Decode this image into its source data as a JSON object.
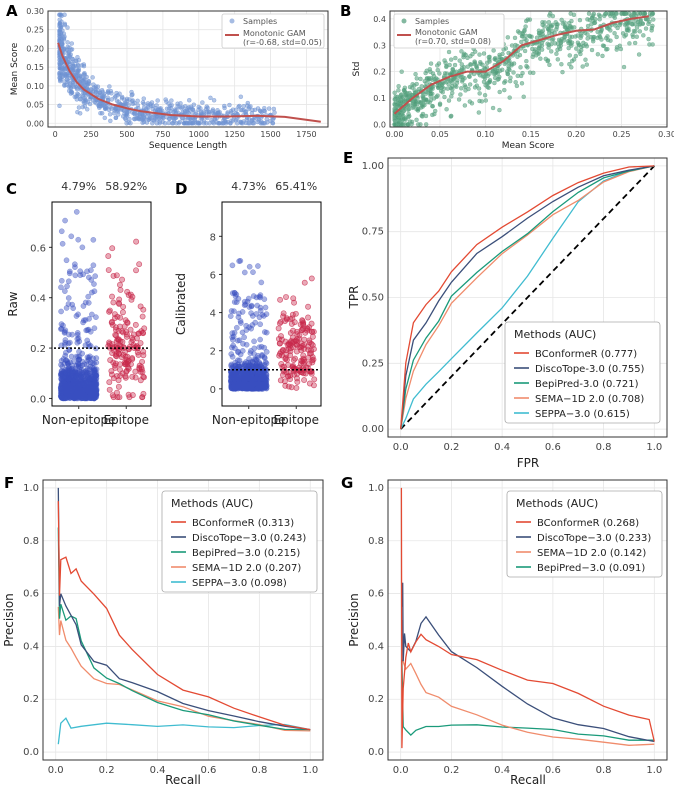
{
  "panel_labels": {
    "A": "A",
    "B": "B",
    "C": "C",
    "D": "D",
    "E": "E",
    "F": "F",
    "G": "G"
  },
  "colors": {
    "blue_pts": "#6a8fd0",
    "green_pts": "#4f9a78",
    "gam": "#c0504d",
    "nonepi": "#3a4fc0",
    "epi": "#c8284a",
    "bconformer": "#e34a33",
    "discotope": "#3b4f7a",
    "bepipred": "#1a9a7a",
    "sema": "#f08c6c",
    "seppa": "#40bcd0"
  },
  "chart_data": [
    {
      "panel": "A",
      "type": "scatter",
      "xlabel": "Sequence Length",
      "ylabel": "Mean Score",
      "xlim": [
        -50,
        1900
      ],
      "ylim": [
        -0.01,
        0.3
      ],
      "xticks": [
        "0",
        "250",
        "500",
        "750",
        "1000",
        "1250",
        "1500",
        "1750"
      ],
      "yticks": [
        "0.00",
        "0.05",
        "0.10",
        "0.15",
        "0.20",
        "0.25",
        "0.30"
      ],
      "legend": {
        "points": "Samples",
        "line": "Monotonic GAM",
        "line_sub": "(r=-0.68, std=0.05)"
      },
      "gam_x": [
        20,
        50,
        100,
        150,
        200,
        300,
        400,
        500,
        600,
        800,
        1000,
        1200,
        1400,
        1600,
        1850
      ],
      "gam_y": [
        0.215,
        0.18,
        0.14,
        0.11,
        0.09,
        0.065,
        0.05,
        0.04,
        0.032,
        0.022,
        0.018,
        0.018,
        0.02,
        0.017,
        0.004
      ]
    },
    {
      "panel": "B",
      "type": "scatter",
      "xlabel": "Mean Score",
      "ylabel": "Std",
      "xlim": [
        -0.005,
        0.3
      ],
      "ylim": [
        -0.01,
        0.43
      ],
      "xticks": [
        "0.00",
        "0.05",
        "0.10",
        "0.15",
        "0.20",
        "0.25",
        "0.30"
      ],
      "yticks": [
        "0.0",
        "0.1",
        "0.2",
        "0.3",
        "0.4"
      ],
      "legend": {
        "points": "Samples",
        "line": "Monotonic GAM",
        "line_sub": "(r=0.70, std=0.08)"
      },
      "gam_x": [
        0,
        0.02,
        0.04,
        0.06,
        0.08,
        0.1,
        0.12,
        0.14,
        0.16,
        0.18,
        0.2,
        0.22,
        0.24,
        0.26,
        0.28
      ],
      "gam_y": [
        0.04,
        0.1,
        0.15,
        0.18,
        0.2,
        0.2,
        0.24,
        0.3,
        0.32,
        0.34,
        0.355,
        0.36,
        0.385,
        0.4,
        0.41
      ]
    },
    {
      "panel": "C",
      "type": "strip",
      "ylabel": "Raw",
      "categories": [
        "Non-epitope",
        "Epitope"
      ],
      "percentages": [
        "4.79%",
        "58.92%"
      ],
      "threshold": 0.2,
      "ylim": [
        -0.03,
        0.78
      ],
      "yticks": [
        "0.0",
        "0.2",
        "0.4",
        "0.6"
      ]
    },
    {
      "panel": "D",
      "type": "strip",
      "ylabel": "Calibrated",
      "categories": [
        "Non-epitope",
        "Epitope"
      ],
      "percentages": [
        "4.73%",
        "65.41%"
      ],
      "threshold": 1.0,
      "ylim": [
        -0.9,
        9.8
      ],
      "yticks": [
        "0",
        "2",
        "4",
        "6",
        "8"
      ]
    },
    {
      "panel": "E",
      "type": "line",
      "xlabel": "FPR",
      "ylabel": "TPR",
      "xlim": [
        -0.05,
        1.05
      ],
      "ylim": [
        -0.03,
        1.03
      ],
      "xticks": [
        "0.0",
        "0.2",
        "0.4",
        "0.6",
        "0.8",
        "1.0"
      ],
      "yticks": [
        "0.00",
        "0.25",
        "0.50",
        "0.75",
        "1.00"
      ],
      "legend_title": "Methods (AUC)",
      "series": [
        {
          "name": "BConformeR (0.777)",
          "key": "bconformer",
          "x": [
            0,
            0.02,
            0.05,
            0.1,
            0.15,
            0.2,
            0.3,
            0.4,
            0.5,
            0.6,
            0.7,
            0.8,
            0.9,
            1.0
          ],
          "y": [
            0,
            0.25,
            0.4,
            0.47,
            0.53,
            0.6,
            0.7,
            0.77,
            0.83,
            0.88,
            0.93,
            0.97,
            0.99,
            1.0
          ]
        },
        {
          "name": "DiscoTope-3.0 (0.755)",
          "key": "discotope",
          "x": [
            0,
            0.02,
            0.05,
            0.1,
            0.15,
            0.2,
            0.3,
            0.4,
            0.5,
            0.6,
            0.7,
            0.8,
            0.9,
            1.0
          ],
          "y": [
            0,
            0.2,
            0.33,
            0.41,
            0.49,
            0.56,
            0.66,
            0.74,
            0.81,
            0.87,
            0.92,
            0.96,
            0.99,
            1.0
          ]
        },
        {
          "name": "BepiPred-3.0 (0.721)",
          "key": "bepipred",
          "x": [
            0,
            0.02,
            0.05,
            0.1,
            0.15,
            0.2,
            0.3,
            0.4,
            0.5,
            0.6,
            0.7,
            0.8,
            0.9,
            1.0
          ],
          "y": [
            0,
            0.15,
            0.26,
            0.34,
            0.42,
            0.5,
            0.59,
            0.67,
            0.75,
            0.83,
            0.9,
            0.96,
            0.99,
            1.0
          ]
        },
        {
          "name": "SEMA−1D 2.0 (0.708)",
          "key": "sema",
          "x": [
            0,
            0.02,
            0.05,
            0.1,
            0.15,
            0.2,
            0.3,
            0.4,
            0.5,
            0.6,
            0.7,
            0.8,
            0.9,
            1.0
          ],
          "y": [
            0,
            0.12,
            0.22,
            0.33,
            0.4,
            0.48,
            0.58,
            0.66,
            0.74,
            0.81,
            0.87,
            0.93,
            0.97,
            1.0
          ]
        },
        {
          "name": "SEPPA−3.0 (0.615)",
          "key": "seppa",
          "x": [
            0,
            0.02,
            0.05,
            0.1,
            0.15,
            0.2,
            0.3,
            0.4,
            0.5,
            0.6,
            0.7,
            0.8,
            0.9,
            1.0
          ],
          "y": [
            0,
            0.05,
            0.12,
            0.18,
            0.22,
            0.27,
            0.36,
            0.46,
            0.58,
            0.72,
            0.86,
            0.95,
            0.98,
            1.0
          ]
        }
      ],
      "diagonal": true
    },
    {
      "panel": "F",
      "type": "line",
      "xlabel": "Recall",
      "ylabel": "Precision",
      "xlim": [
        -0.05,
        1.05
      ],
      "ylim": [
        -0.03,
        1.03
      ],
      "xticks": [
        "0.0",
        "0.2",
        "0.4",
        "0.6",
        "0.8",
        "1.0"
      ],
      "yticks": [
        "0.0",
        "0.2",
        "0.4",
        "0.6",
        "0.8",
        "1.0"
      ],
      "legend_title": "Methods (AUC)",
      "series": [
        {
          "name": "BConformeR (0.313)",
          "key": "bconformer",
          "x": [
            0.01,
            0.015,
            0.02,
            0.04,
            0.06,
            0.08,
            0.1,
            0.15,
            0.2,
            0.25,
            0.3,
            0.4,
            0.5,
            0.6,
            0.7,
            0.8,
            0.9,
            1.0
          ],
          "y": [
            0.95,
            0.6,
            0.72,
            0.74,
            0.68,
            0.7,
            0.65,
            0.6,
            0.55,
            0.45,
            0.38,
            0.29,
            0.24,
            0.2,
            0.16,
            0.13,
            0.11,
            0.085
          ]
        },
        {
          "name": "DiscoTope−3.0 (0.243)",
          "key": "discotope",
          "x": [
            0.01,
            0.015,
            0.02,
            0.04,
            0.06,
            0.08,
            0.1,
            0.15,
            0.2,
            0.25,
            0.3,
            0.4,
            0.5,
            0.6,
            0.7,
            0.8,
            0.9,
            1.0
          ],
          "y": [
            1.0,
            0.55,
            0.6,
            0.55,
            0.52,
            0.48,
            0.4,
            0.35,
            0.32,
            0.28,
            0.26,
            0.22,
            0.19,
            0.16,
            0.14,
            0.12,
            0.1,
            0.085
          ]
        },
        {
          "name": "BepiPred−3.0 (0.215)",
          "key": "bepipred",
          "x": [
            0.01,
            0.015,
            0.02,
            0.04,
            0.06,
            0.08,
            0.1,
            0.15,
            0.2,
            0.25,
            0.3,
            0.4,
            0.5,
            0.6,
            0.7,
            0.8,
            0.9,
            1.0
          ],
          "y": [
            0.85,
            0.5,
            0.55,
            0.5,
            0.52,
            0.5,
            0.42,
            0.32,
            0.28,
            0.25,
            0.23,
            0.19,
            0.16,
            0.14,
            0.12,
            0.11,
            0.095,
            0.085
          ]
        },
        {
          "name": "SEMA−1D 2.0 (0.207)",
          "key": "sema",
          "x": [
            0.01,
            0.015,
            0.02,
            0.04,
            0.06,
            0.08,
            0.1,
            0.15,
            0.2,
            0.25,
            0.3,
            0.4,
            0.5,
            0.6,
            0.7,
            0.8,
            0.9,
            1.0
          ],
          "y": [
            0.55,
            0.45,
            0.5,
            0.42,
            0.4,
            0.36,
            0.32,
            0.28,
            0.26,
            0.25,
            0.23,
            0.2,
            0.17,
            0.14,
            0.12,
            0.1,
            0.09,
            0.08
          ]
        },
        {
          "name": "SEPPA−3.0 (0.098)",
          "key": "seppa",
          "x": [
            0.01,
            0.02,
            0.04,
            0.06,
            0.1,
            0.2,
            0.3,
            0.4,
            0.5,
            0.6,
            0.7,
            0.8,
            0.9,
            1.0
          ],
          "y": [
            0.03,
            0.1,
            0.12,
            0.09,
            0.1,
            0.1,
            0.1,
            0.1,
            0.1,
            0.1,
            0.1,
            0.1,
            0.095,
            0.085
          ]
        }
      ]
    },
    {
      "panel": "G",
      "type": "line",
      "xlabel": "Recall",
      "ylabel": "Precision",
      "xlim": [
        -0.05,
        1.05
      ],
      "ylim": [
        -0.03,
        1.03
      ],
      "xticks": [
        "0.0",
        "0.2",
        "0.4",
        "0.6",
        "0.8",
        "1.0"
      ],
      "yticks": [
        "0.0",
        "0.2",
        "0.4",
        "0.6",
        "0.8",
        "1.0"
      ],
      "legend_title": "Methods (AUC)",
      "series": [
        {
          "name": "BConformeR (0.268)",
          "key": "bconformer",
          "x": [
            0.003,
            0.005,
            0.01,
            0.02,
            0.03,
            0.04,
            0.06,
            0.08,
            0.1,
            0.15,
            0.2,
            0.3,
            0.4,
            0.5,
            0.6,
            0.7,
            0.8,
            0.9,
            0.98,
            1.0
          ],
          "y": [
            1.0,
            0.02,
            0.25,
            0.35,
            0.42,
            0.38,
            0.42,
            0.45,
            0.43,
            0.4,
            0.36,
            0.34,
            0.3,
            0.28,
            0.25,
            0.22,
            0.18,
            0.15,
            0.12,
            0.04
          ]
        },
        {
          "name": "DiscoTope−3.0 (0.233)",
          "key": "discotope",
          "x": [
            0.005,
            0.008,
            0.01,
            0.015,
            0.02,
            0.04,
            0.06,
            0.08,
            0.1,
            0.15,
            0.2,
            0.3,
            0.4,
            0.5,
            0.6,
            0.7,
            0.8,
            0.9,
            1.0
          ],
          "y": [
            0.55,
            0.65,
            0.35,
            0.45,
            0.4,
            0.38,
            0.42,
            0.48,
            0.52,
            0.44,
            0.38,
            0.32,
            0.24,
            0.18,
            0.13,
            0.1,
            0.08,
            0.06,
            0.04
          ]
        },
        {
          "name": "SEMA−1D 2.0 (0.142)",
          "key": "sema",
          "x": [
            0.005,
            0.01,
            0.02,
            0.04,
            0.06,
            0.08,
            0.1,
            0.15,
            0.2,
            0.3,
            0.4,
            0.5,
            0.6,
            0.7,
            0.8,
            0.9,
            1.0
          ],
          "y": [
            0.5,
            0.35,
            0.32,
            0.34,
            0.3,
            0.26,
            0.22,
            0.2,
            0.18,
            0.14,
            0.1,
            0.08,
            0.06,
            0.05,
            0.04,
            0.035,
            0.03
          ]
        },
        {
          "name": "BepiPred−3.0 (0.091)",
          "key": "bepipred",
          "x": [
            0.005,
            0.01,
            0.02,
            0.04,
            0.06,
            0.1,
            0.15,
            0.2,
            0.3,
            0.4,
            0.5,
            0.6,
            0.7,
            0.8,
            0.9,
            1.0
          ],
          "y": [
            0.35,
            0.1,
            0.08,
            0.07,
            0.09,
            0.1,
            0.1,
            0.11,
            0.1,
            0.1,
            0.09,
            0.08,
            0.075,
            0.06,
            0.05,
            0.045
          ]
        }
      ]
    }
  ]
}
